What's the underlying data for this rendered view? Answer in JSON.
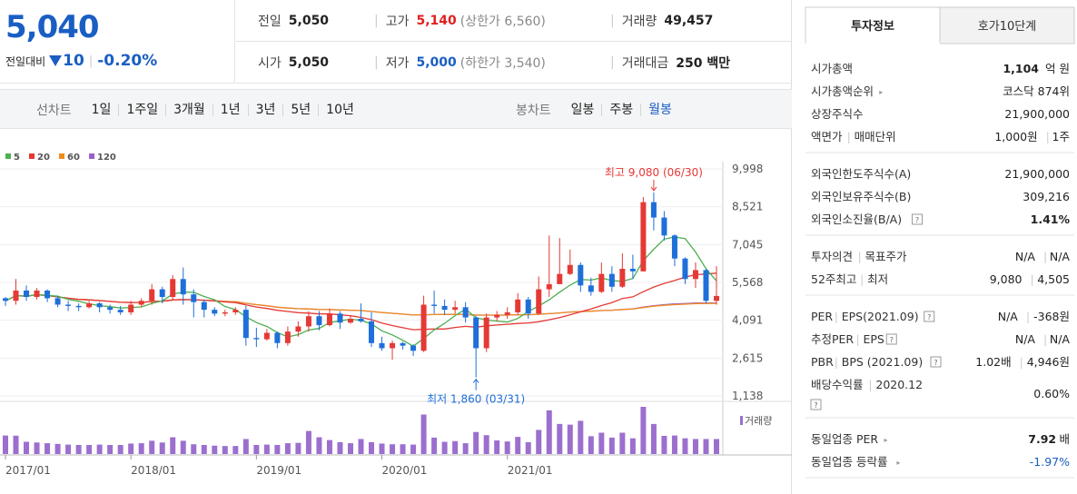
{
  "price": {
    "current": "5,040",
    "change_label": "전일대비",
    "change_abs": "10",
    "change_pct": "-0.20%"
  },
  "summary": {
    "prev_close_label": "전일",
    "prev_close": "5,050",
    "high_label": "고가",
    "high": "5,140",
    "upper_limit": "(상한가 6,560)",
    "volume_label": "거래량",
    "volume": "49,457",
    "open_label": "시가",
    "open": "5,050",
    "low_label": "저가",
    "low": "5,000",
    "lower_limit": "(하한가 3,540)",
    "trade_value_label": "거래대금",
    "trade_value": "250 백만"
  },
  "toolbar": {
    "line_chart_label": "선차트",
    "line_periods": [
      "1일",
      "1주일",
      "3개월",
      "1년",
      "3년",
      "5년",
      "10년"
    ],
    "candle_chart_label": "봉차트",
    "candle_periods": [
      "일봉",
      "주봉",
      "월봉"
    ],
    "active_candle_period": "월봉"
  },
  "right_panel": {
    "tabs": [
      "투자정보",
      "호가10단계"
    ],
    "active_tab": "투자정보",
    "sections": [
      [
        {
          "label": "시가총액",
          "value_bold": "1,104",
          "value_rest": "억 원"
        },
        {
          "label": "시가총액순위",
          "arrow": true,
          "value_rest": "코스닥 874위"
        },
        {
          "label": "상장주식수",
          "value_rest": "21,900,000"
        },
        {
          "label": "액면가",
          "label2": "매매단위",
          "value_rest": "1,000원",
          "value2": "1주"
        }
      ],
      [
        {
          "label": "외국인한도주식수(A)",
          "value_rest": "21,900,000"
        },
        {
          "label": "외국인보유주식수(B)",
          "value_rest": "309,216"
        },
        {
          "label": "외국인소진율(B/A)",
          "help": true,
          "value_bold": "1.41%"
        }
      ],
      [
        {
          "label": "투자의견",
          "label2": "목표주가",
          "value_rest": "N/A",
          "value2": "N/A"
        },
        {
          "label": "52주최고",
          "label2": "최저",
          "value_rest": "9,080",
          "value2": "4,505"
        }
      ],
      [
        {
          "label": "PER",
          "label2": "EPS(2021.09)",
          "help": true,
          "value_rest": "N/A",
          "value2": "-368원"
        },
        {
          "label": "추정PER",
          "label2": "EPS",
          "help": true,
          "value_rest": "N/A",
          "value2": "N/A"
        },
        {
          "label": "PBR",
          "label2": "BPS (2021.09)",
          "help": true,
          "value_rest": "1.02배",
          "value2": "4,946원"
        },
        {
          "label": "배당수익률",
          "label2": "2020.12",
          "help_below": true,
          "value_rest": "0.60%"
        }
      ],
      [
        {
          "label": "동일업종 PER",
          "arrow": true,
          "value_bold": "7.92",
          "value_rest": "배"
        },
        {
          "label": "동일업종 등락률",
          "arrow": true,
          "value_rest": "-1.97%",
          "value_color": "#1a5ec4"
        }
      ]
    ]
  },
  "chart_data": {
    "type": "candlestick",
    "legend": [
      {
        "name": "5",
        "color": "#4caf50"
      },
      {
        "name": "20",
        "color": "#e53935"
      },
      {
        "name": "60",
        "color": "#f08c1e"
      },
      {
        "name": "120",
        "color": "#9c5fc9"
      }
    ],
    "y_ticks": [
      "9,998",
      "8,521",
      "7,045",
      "5,568",
      "4,091",
      "2,615",
      "1,138"
    ],
    "ylim": [
      1138,
      9998
    ],
    "x_ticks": [
      "2017/01",
      "2018/01",
      "2019/01",
      "2020/01",
      "2021/01"
    ],
    "high_annotation": "최고 9,080 (06/30)",
    "low_annotation": "최저 1,860 (03/31)",
    "volume_label": "거래량",
    "up_color": "#e53935",
    "down_color": "#1e6fd9",
    "volume_color": "#9c6fcf",
    "candles": [
      [
        4950,
        4850,
        5000,
        4650,
        5300
      ],
      [
        4850,
        5250,
        5700,
        4700,
        5250
      ],
      [
        5250,
        5000,
        5450,
        4850,
        3500
      ],
      [
        5000,
        5250,
        5350,
        4900,
        3300
      ],
      [
        5250,
        4950,
        5300,
        4800,
        3100
      ],
      [
        4950,
        4700,
        5050,
        4600,
        2900
      ],
      [
        4700,
        4650,
        4850,
        4450,
        2700
      ],
      [
        4650,
        4600,
        4750,
        4450,
        2600
      ],
      [
        4600,
        4750,
        4850,
        4550,
        2600
      ],
      [
        4750,
        4600,
        4800,
        4400,
        2700
      ],
      [
        4600,
        4500,
        4700,
        4350,
        2600
      ],
      [
        4500,
        4400,
        4650,
        4300,
        2600
      ],
      [
        4400,
        4700,
        4850,
        4300,
        3000
      ],
      [
        4700,
        4850,
        4950,
        4600,
        3100
      ],
      [
        4850,
        5300,
        5500,
        4700,
        3800
      ],
      [
        5300,
        5000,
        5400,
        4750,
        3300
      ],
      [
        5000,
        5700,
        5850,
        4900,
        4800
      ],
      [
        5700,
        5100,
        6150,
        4700,
        3800
      ],
      [
        5100,
        4800,
        5300,
        4200,
        2800
      ],
      [
        4800,
        4500,
        4900,
        4200,
        2600
      ],
      [
        4500,
        4350,
        4600,
        4250,
        2400
      ],
      [
        4350,
        4400,
        4500,
        4250,
        2300
      ],
      [
        4400,
        4500,
        4600,
        4300,
        2300
      ],
      [
        4500,
        3400,
        4650,
        3100,
        4300
      ],
      [
        3400,
        3350,
        3800,
        3050,
        2600
      ],
      [
        3350,
        3600,
        3750,
        3300,
        2700
      ],
      [
        3600,
        3200,
        3650,
        3000,
        2600
      ],
      [
        3200,
        3650,
        3850,
        3100,
        3100
      ],
      [
        3650,
        3850,
        4050,
        3450,
        3200
      ],
      [
        3850,
        4250,
        4450,
        3650,
        6600
      ],
      [
        4250,
        3900,
        4450,
        3700,
        4800
      ],
      [
        3900,
        4350,
        4550,
        3850,
        4000
      ],
      [
        4350,
        4000,
        4450,
        3750,
        3400
      ],
      [
        4000,
        4150,
        4250,
        3950,
        3100
      ],
      [
        4150,
        4050,
        4750,
        4000,
        4300
      ],
      [
        4050,
        3200,
        4400,
        3050,
        3400
      ],
      [
        3200,
        3000,
        3450,
        2900,
        3000
      ],
      [
        3000,
        3200,
        3300,
        2550,
        2800
      ],
      [
        3200,
        3100,
        3250,
        2950,
        2800
      ],
      [
        3100,
        2900,
        3150,
        2700,
        2700
      ],
      [
        2900,
        4700,
        5050,
        2850,
        11300
      ],
      [
        4700,
        4650,
        5250,
        4350,
        4700
      ],
      [
        4650,
        4500,
        4900,
        4300,
        3500
      ],
      [
        4500,
        4600,
        4850,
        4350,
        3700
      ],
      [
        4600,
        4200,
        4800,
        4000,
        3100
      ],
      [
        4200,
        3000,
        4250,
        1860,
        6300
      ],
      [
        3000,
        4200,
        4350,
        2850,
        5400
      ],
      [
        4200,
        4300,
        4450,
        4050,
        3900
      ],
      [
        4300,
        4400,
        4600,
        4150,
        3600
      ],
      [
        4400,
        4900,
        5150,
        4300,
        4900
      ],
      [
        4900,
        4350,
        5000,
        4150,
        3400
      ],
      [
        4350,
        5300,
        5800,
        4300,
        6900
      ],
      [
        5300,
        5500,
        7400,
        5000,
        12500
      ],
      [
        5500,
        5900,
        7300,
        5650,
        8600
      ],
      [
        5900,
        6250,
        6850,
        5850,
        8400
      ],
      [
        6250,
        5450,
        6350,
        5200,
        9500
      ],
      [
        5450,
        5200,
        5750,
        5050,
        5100
      ],
      [
        5200,
        5900,
        6350,
        5150,
        6100
      ],
      [
        5900,
        5400,
        6200,
        5200,
        4700
      ],
      [
        5400,
        6100,
        6700,
        5350,
        6100
      ],
      [
        6100,
        6000,
        6650,
        5700,
        4500
      ],
      [
        6000,
        8700,
        8900,
        6000,
        13500
      ],
      [
        8700,
        8100,
        9080,
        7600,
        8600
      ],
      [
        8100,
        7400,
        8350,
        7200,
        5200
      ],
      [
        7400,
        6500,
        7450,
        6200,
        5300
      ],
      [
        6500,
        5700,
        6550,
        5500,
        4500
      ],
      [
        5700,
        6050,
        6350,
        5350,
        4300
      ],
      [
        6050,
        4850,
        6100,
        4750,
        4300
      ],
      [
        4850,
        5040,
        6200,
        4700,
        4300
      ]
    ]
  }
}
